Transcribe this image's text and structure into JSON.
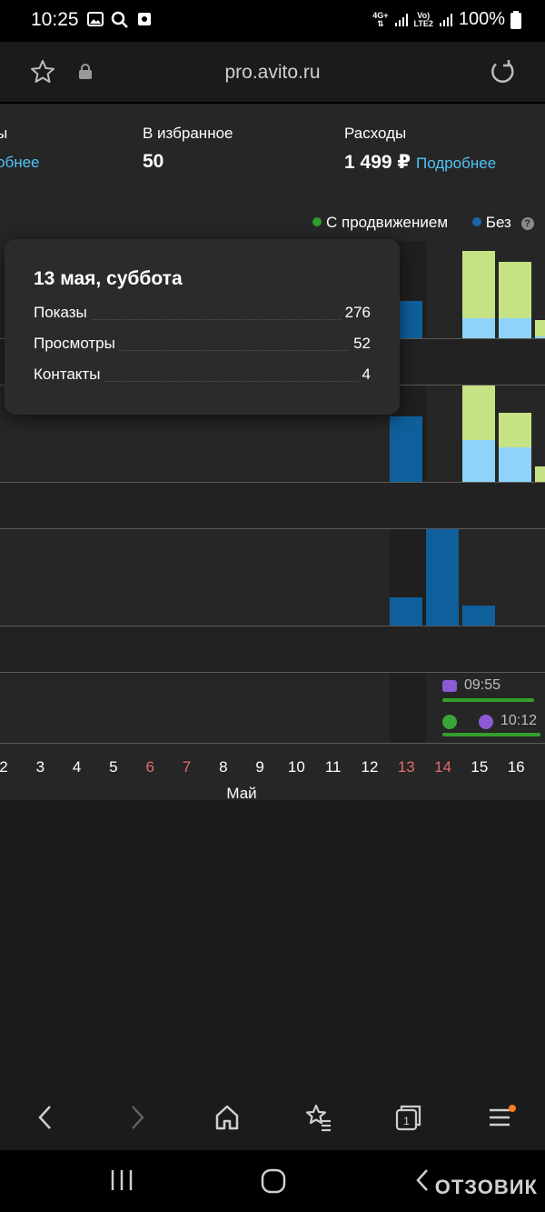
{
  "status_bar": {
    "time": "10:25",
    "battery": "100%",
    "net_top": "4G+",
    "volte_top": "Vo)",
    "volte_bottom": "LTE2"
  },
  "browser": {
    "url": "pro.avito.ru"
  },
  "stats": {
    "left_label": "ы",
    "left_link": "обнее",
    "favorites_label": "В избранное",
    "favorites_value": "50",
    "expenses_label": "Расходы",
    "expenses_value": "1 499 ₽",
    "expenses_link": "Подробнее"
  },
  "legend": {
    "promoted": "С продвижением",
    "without": "Без",
    "help": "?",
    "promoted_color": "#2e9e2e",
    "without_color": "#1e64a8"
  },
  "tooltip": {
    "title": "13 мая, суббота",
    "rows": [
      {
        "label": "Показы",
        "value": "276"
      },
      {
        "label": "Просмотры",
        "value": "52"
      },
      {
        "label": "Контакты",
        "value": "4"
      }
    ]
  },
  "axis": {
    "ticks": [
      {
        "label": "2",
        "weekend": false
      },
      {
        "label": "3",
        "weekend": false
      },
      {
        "label": "4",
        "weekend": false
      },
      {
        "label": "5",
        "weekend": false
      },
      {
        "label": "6",
        "weekend": true
      },
      {
        "label": "7",
        "weekend": true
      },
      {
        "label": "8",
        "weekend": false
      },
      {
        "label": "9",
        "weekend": false
      },
      {
        "label": "10",
        "weekend": false
      },
      {
        "label": "11",
        "weekend": false
      },
      {
        "label": "12",
        "weekend": false
      },
      {
        "label": "13",
        "weekend": true
      },
      {
        "label": "14",
        "weekend": true
      },
      {
        "label": "15",
        "weekend": false
      },
      {
        "label": "16",
        "weekend": false
      }
    ],
    "month": "Май"
  },
  "chart_data": [
    {
      "type": "bar",
      "categories": [
        "12",
        "13",
        "14",
        "15",
        "16"
      ],
      "series": [
        {
          "name": "С продвижением",
          "values": [
            0,
            0,
            0.69,
            0.58,
            0.17
          ]
        },
        {
          "name": "Без",
          "values": [
            0.38,
            0,
            0.21,
            0.21,
            0.02
          ]
        }
      ]
    },
    {
      "type": "bar",
      "categories": [
        "12",
        "13",
        "14",
        "15",
        "16"
      ],
      "series": [
        {
          "name": "С продвижением",
          "values": [
            0,
            0,
            0.57,
            0.36,
            0.16
          ]
        },
        {
          "name": "Без",
          "values": [
            0.68,
            0,
            0.43,
            0.36,
            0
          ]
        }
      ]
    },
    {
      "type": "bar",
      "categories": [
        "13",
        "14",
        "15"
      ],
      "series": [
        {
          "name": "Без",
          "values": [
            0.29,
            1.0,
            0.21
          ]
        }
      ]
    }
  ],
  "events": [
    {
      "time": "09:55"
    },
    {
      "time": "10:12"
    }
  ],
  "colors": {
    "promoted_bar": "#c5e384",
    "without_bar_light": "#8fd3fb",
    "without_bar": "#0f5f9c",
    "link": "#4fc3f7",
    "weekend": "#e46a6a"
  },
  "watermark": "ОТЗОВИК"
}
